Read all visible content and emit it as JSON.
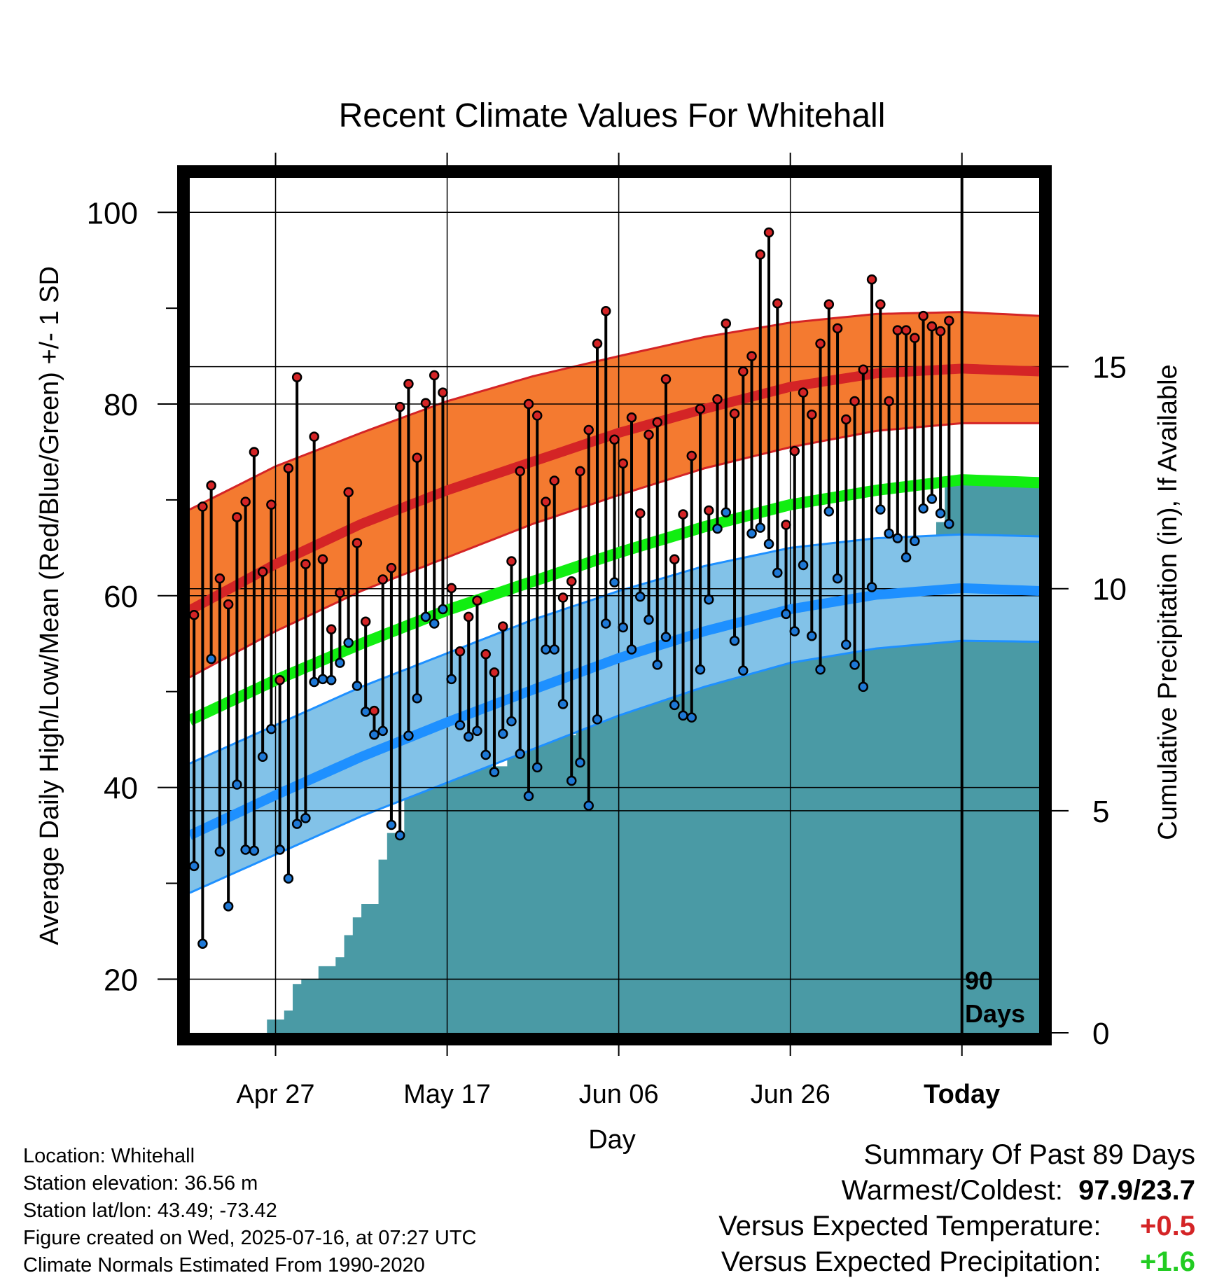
{
  "title": "Recent Climate Values For Whitehall",
  "y_label_left": "Average Daily High/Low/Mean (Red/Blue/Green) +/- 1 SD",
  "y_label_right": "Cumulative Precipitation (in), If Available",
  "x_label": "Day",
  "days_label_1": "90",
  "days_label_2": "Days",
  "colors": {
    "high_band": "#f47a30",
    "high_mean": "#d42426",
    "low_band": "#82c2e8",
    "low_mean": "#1e90ff",
    "mean_line": "#11ee11",
    "precip": "#4a9aa5",
    "high_dot": "#d42426",
    "low_dot": "#1e78d6",
    "pos_temp": "#d42426",
    "pos_precip": "#22cc22"
  },
  "info": {
    "location": "Location: Whitehall",
    "elevation": "Station elevation: 36.56 m",
    "latlon": "Station lat/lon: 43.49; -73.42",
    "created": "Figure created on Wed, 2025-07-16, at 07:27 UTC",
    "normals": "Climate Normals Estimated From 1990-2020"
  },
  "summary": {
    "heading": "Summary Of Past 89 Days",
    "warm_cold_label": "Warmest/Coldest:",
    "warm_cold_value": "97.9/23.7",
    "temp_label": "Versus Expected Temperature:",
    "temp_value": "+0.5",
    "precip_label": "Versus Expected Precipitation:",
    "precip_value": "+1.6"
  },
  "chart_data": {
    "type": "line",
    "title": "Recent Climate Values For Whitehall",
    "xlabel": "Day",
    "ylabel": "Average Daily High/Low/Mean (Red/Blue/Green) +/- 1 SD",
    "y2label": "Cumulative Precipitation (in), If Available",
    "x_range_days": [
      -90,
      9
    ],
    "x_ticks": [
      {
        "day": -80,
        "label": "Apr 27"
      },
      {
        "day": -60,
        "label": "May 17"
      },
      {
        "day": -40,
        "label": "Jun 06"
      },
      {
        "day": -20,
        "label": "Jun 26"
      },
      {
        "day": 0,
        "label": "Today"
      }
    ],
    "ylim": [
      14.4,
      103.6
    ],
    "y_ticks": [
      20,
      40,
      60,
      80,
      100
    ],
    "y2lim": [
      0,
      19.25
    ],
    "y2_ticks": [
      0,
      5,
      10,
      15
    ],
    "grid": true,
    "normals": {
      "days": [
        -90,
        -80,
        -70,
        -60,
        -50,
        -40,
        -30,
        -20,
        -10,
        0,
        9
      ],
      "high_mean": [
        58.5,
        63.3,
        67.5,
        71.0,
        74.0,
        77.0,
        79.5,
        81.8,
        83.2,
        83.7,
        83.4
      ],
      "high_upper": [
        69.0,
        73.5,
        77.0,
        80.3,
        82.9,
        85.0,
        87.0,
        88.5,
        89.4,
        89.6,
        89.2
      ],
      "high_lower": [
        51.5,
        56.3,
        60.5,
        64.0,
        67.5,
        70.5,
        73.3,
        75.5,
        77.2,
        78.0,
        78.0
      ],
      "mean": [
        47.0,
        51.2,
        55.0,
        58.5,
        61.5,
        64.5,
        67.2,
        69.5,
        71.0,
        72.1,
        71.8
      ],
      "low_mean": [
        35.0,
        39.2,
        43.2,
        46.8,
        50.2,
        53.5,
        56.3,
        58.6,
        60.1,
        60.8,
        60.5
      ],
      "low_upper": [
        42.5,
        46.5,
        50.5,
        54.0,
        57.5,
        60.5,
        63.1,
        65.0,
        66.0,
        66.4,
        66.2
      ],
      "low_lower": [
        29.0,
        33.0,
        37.0,
        40.5,
        44.0,
        47.5,
        50.5,
        53.0,
        54.5,
        55.3,
        55.2
      ]
    },
    "series": [
      {
        "name": "High",
        "values": [
          58.0,
          69.3,
          71.5,
          61.8,
          59.1,
          68.2,
          69.8,
          75.0,
          62.5,
          69.5,
          51.2,
          73.3,
          82.8,
          63.3,
          76.6,
          63.8,
          56.5,
          60.3,
          70.8,
          65.5,
          57.3,
          48.0,
          61.7,
          62.9,
          79.7,
          82.1,
          74.4,
          80.1,
          83.0,
          81.2,
          60.8,
          54.2,
          57.8,
          59.5,
          53.9,
          52.0,
          56.8,
          63.6,
          73.0,
          80.0,
          78.8,
          69.8,
          72.0,
          59.8,
          61.5,
          73.0,
          77.3,
          86.3,
          89.7,
          76.3,
          73.8,
          78.6,
          68.6,
          76.8,
          78.1,
          82.6,
          63.8,
          68.5,
          74.6,
          79.5,
          68.9,
          80.5,
          88.4,
          79.0,
          83.4,
          85.0,
          95.6,
          97.9,
          90.5,
          67.4,
          75.1,
          81.2,
          78.9,
          86.3,
          90.4,
          87.9,
          78.4,
          80.3,
          83.6,
          93.0,
          90.4,
          80.3,
          87.7,
          87.7,
          86.9,
          89.2,
          88.1,
          87.6,
          88.7
        ]
      },
      {
        "name": "Low",
        "values": [
          31.8,
          23.7,
          53.4,
          33.3,
          27.6,
          40.3,
          33.5,
          33.4,
          43.2,
          46.1,
          33.5,
          30.5,
          36.2,
          36.8,
          51.0,
          51.3,
          51.2,
          53.0,
          55.1,
          50.6,
          47.9,
          45.5,
          45.9,
          36.1,
          35.0,
          45.4,
          49.3,
          57.8,
          57.1,
          58.6,
          51.3,
          46.5,
          45.3,
          45.9,
          43.4,
          41.6,
          45.6,
          46.9,
          43.5,
          39.1,
          42.1,
          54.4,
          54.4,
          48.7,
          40.7,
          42.6,
          38.1,
          47.1,
          57.1,
          61.4,
          56.7,
          54.4,
          59.9,
          57.5,
          52.8,
          55.7,
          48.6,
          47.5,
          47.3,
          52.3,
          59.6,
          67.0,
          68.7,
          55.3,
          52.2,
          66.5,
          67.1,
          65.4,
          62.4,
          58.1,
          56.3,
          63.2,
          55.8,
          52.3,
          68.8,
          61.8,
          54.9,
          52.8,
          50.5,
          60.9,
          69.0,
          66.5,
          66.0,
          64.0,
          65.7,
          69.1,
          70.1,
          68.6,
          67.5
        ]
      },
      {
        "name": "Cumulative Precipitation",
        "days": [
          -90,
          -82,
          -81,
          -79,
          -78,
          -77,
          -75,
          -73,
          -72,
          -71,
          -70,
          -69,
          -68,
          -67,
          -66,
          -65,
          -64,
          -62,
          -61,
          -59,
          -58,
          -55,
          -53,
          -52,
          -50,
          -48,
          -46,
          -45,
          -43,
          -40,
          -39,
          -37,
          -35,
          -32,
          -30,
          -29,
          -27,
          -25,
          -22,
          -21,
          -19,
          -17,
          -14,
          -13,
          -11,
          -8,
          -5,
          -4,
          -3,
          -2,
          0,
          9
        ],
        "values": [
          0.0,
          0.0,
          0.3,
          0.5,
          1.1,
          1.2,
          1.5,
          1.7,
          2.2,
          2.6,
          2.9,
          2.9,
          3.9,
          4.5,
          4.5,
          5.6,
          5.6,
          5.6,
          5.8,
          5.8,
          6.0,
          6.0,
          6.7,
          6.7,
          6.7,
          6.7,
          6.7,
          7.3,
          7.3,
          7.3,
          8.2,
          8.6,
          8.7,
          8.7,
          8.7,
          9.0,
          9.2,
          9.2,
          9.5,
          10.1,
          10.3,
          10.3,
          10.6,
          10.9,
          11.1,
          11.1,
          11.1,
          11.1,
          11.5,
          12.4,
          12.4,
          12.4
        ]
      }
    ]
  }
}
